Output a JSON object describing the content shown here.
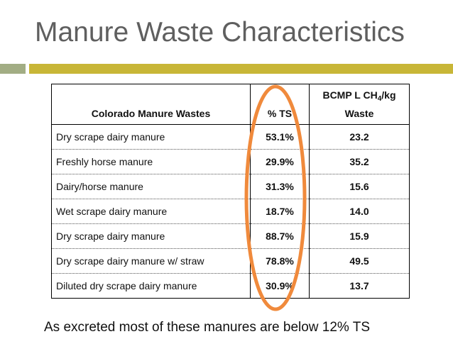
{
  "slide": {
    "title": "Manure Waste Characteristics",
    "caption": "As excreted most of these manures are below 12% TS",
    "colors": {
      "title": "#5f5f5f",
      "bar_left": "#a2ad84",
      "bar_right": "#c8b637",
      "highlight": "#f08a3c"
    }
  },
  "table": {
    "headers": {
      "col1": "Colorado Manure Wastes",
      "col2": "% TS",
      "col3_prefix": "BCMP L CH",
      "col3_sub": "4",
      "col3_suffix": "/kg Waste"
    },
    "rows": [
      {
        "name": "Dry scrape dairy manure",
        "ts": "53.1%",
        "bcmp": "23.2"
      },
      {
        "name": "Freshly horse manure",
        "ts": "29.9%",
        "bcmp": "35.2"
      },
      {
        "name": "Dairy/horse manure",
        "ts": "31.3%",
        "bcmp": "15.6"
      },
      {
        "name": "Wet scrape dairy manure",
        "ts": "18.7%",
        "bcmp": "14.0"
      },
      {
        "name": "Dry scrape dairy manure",
        "ts": "88.7%",
        "bcmp": "15.9"
      },
      {
        "name": "Dry scrape dairy manure w/ straw",
        "ts": "78.8%",
        "bcmp": "49.5"
      },
      {
        "name": "Diluted dry scrape dairy manure",
        "ts": "30.9%",
        "bcmp": "13.7"
      }
    ]
  }
}
